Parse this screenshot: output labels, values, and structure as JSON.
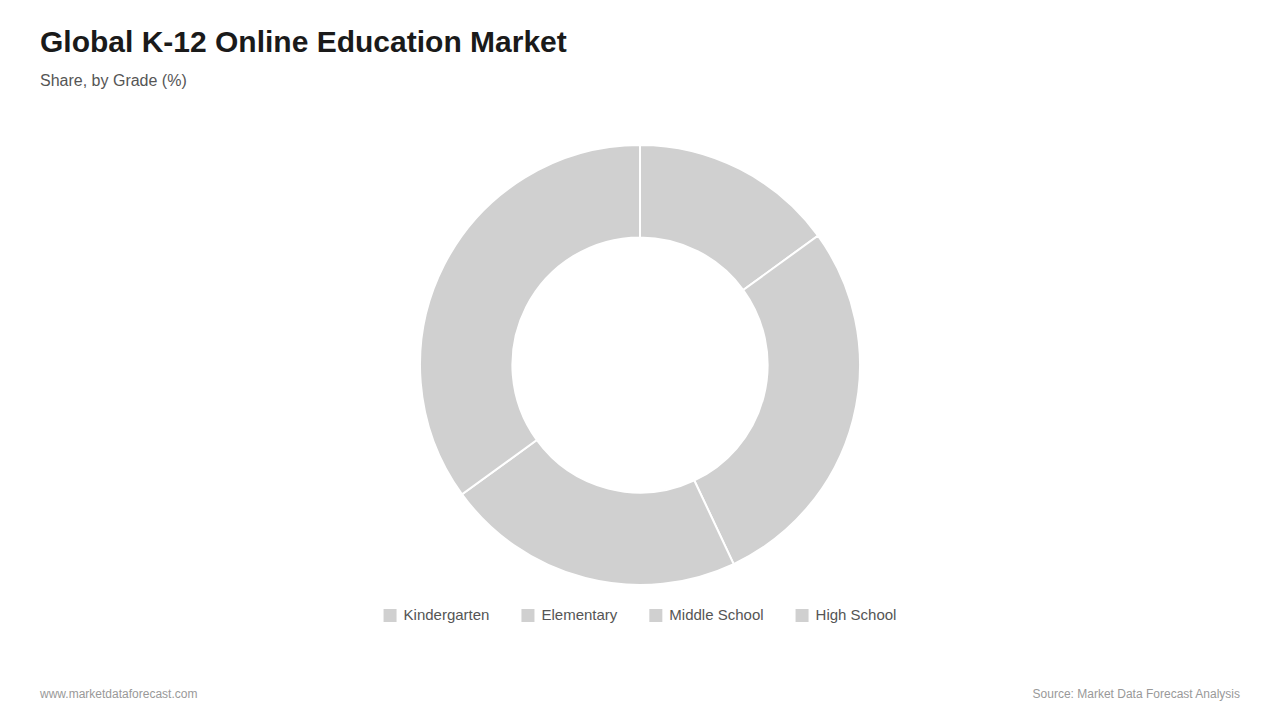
{
  "chart_data": {
    "type": "donut",
    "title": "Global K-12 Online Education Market",
    "subtitle": "Share, by Grade (%)",
    "categories": [
      "Kindergarten",
      "Elementary",
      "Middle School",
      "High School"
    ],
    "values": [
      15,
      28,
      22,
      35
    ],
    "color": "#d0d0d0",
    "legend": "bottom",
    "annotations": [
      "www.marketdataforecast.com",
      "Source: Market Data Forecast Analysis"
    ]
  }
}
